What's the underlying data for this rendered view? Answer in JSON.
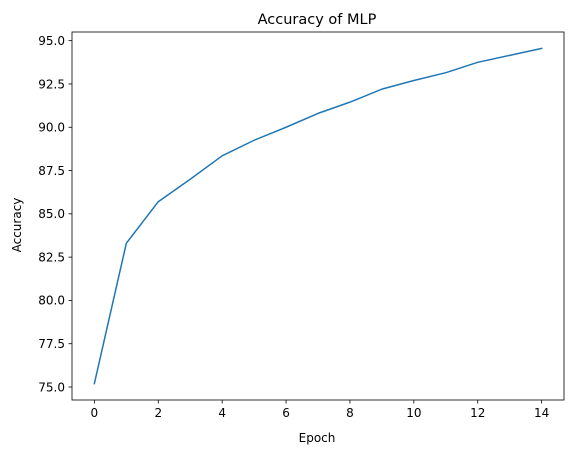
{
  "chart_data": {
    "type": "line",
    "title": "Accuracy of MLP",
    "xlabel": "Epoch",
    "ylabel": "Accuracy",
    "x": [
      0,
      1,
      2,
      3,
      4,
      5,
      6,
      7,
      8,
      9,
      10,
      11,
      12,
      13,
      14
    ],
    "series": [
      {
        "values": [
          75.2,
          83.3,
          85.7,
          87.0,
          88.35,
          89.25,
          90.0,
          90.8,
          91.45,
          92.2,
          92.7,
          93.15,
          93.75,
          94.15,
          94.55
        ],
        "color": "#1f77b4"
      }
    ],
    "xlim": [
      -0.7,
      14.7
    ],
    "ylim": [
      74.25,
      95.5
    ],
    "xticks": [
      0,
      2,
      4,
      6,
      8,
      10,
      12,
      14
    ],
    "xtick_labels": [
      "0",
      "2",
      "4",
      "6",
      "8",
      "10",
      "12",
      "14"
    ],
    "yticks": [
      75.0,
      77.5,
      80.0,
      82.5,
      85.0,
      87.5,
      90.0,
      92.5,
      95.0
    ],
    "ytick_labels": [
      "75.0",
      "77.5",
      "80.0",
      "82.5",
      "85.0",
      "87.5",
      "90.0",
      "92.5",
      "95.0"
    ],
    "grid": false,
    "legend": false
  }
}
